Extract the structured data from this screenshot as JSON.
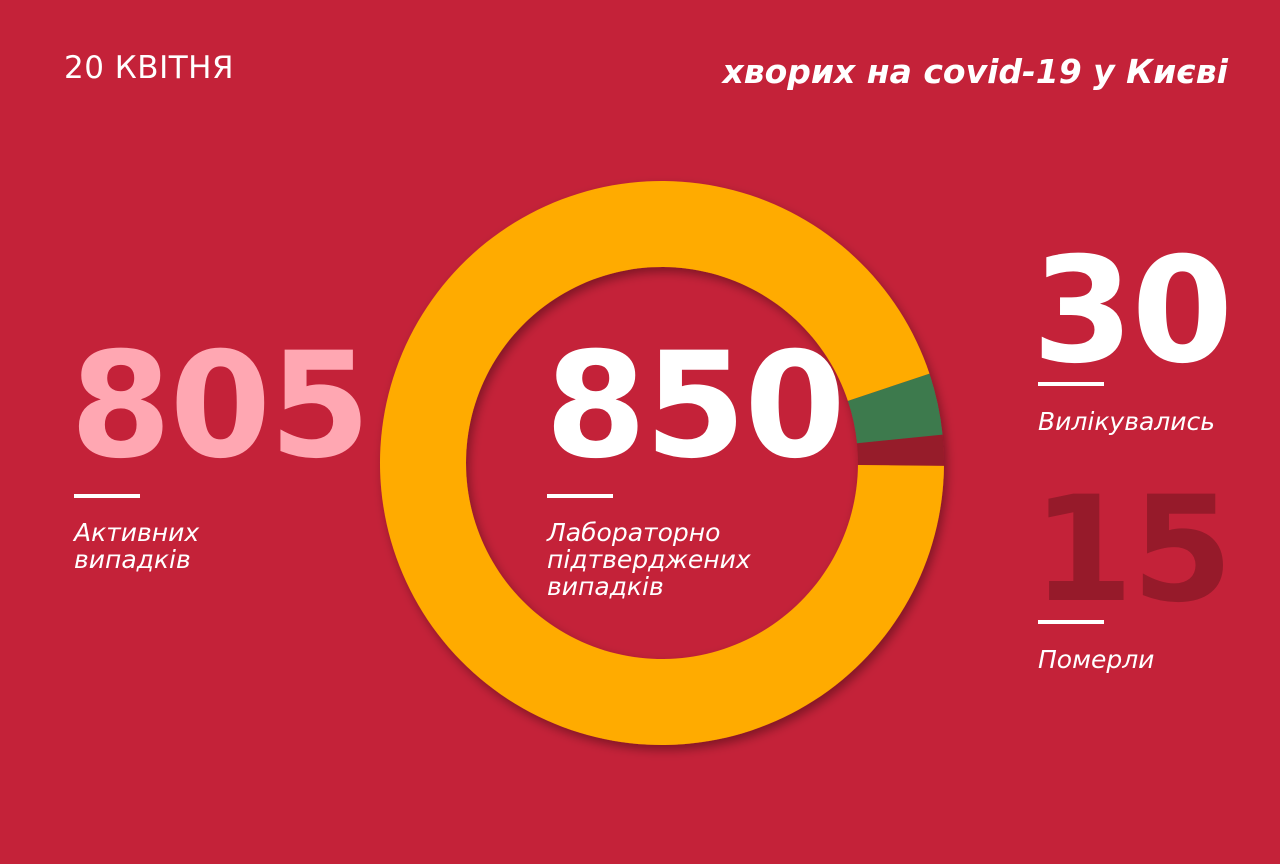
{
  "header": {
    "date": "20 КВІТНЯ",
    "title": "хворих на covid-19 у Києві"
  },
  "stats": {
    "active": {
      "value": "805",
      "label_line1": "Активних",
      "label_line2": "випадків"
    },
    "confirmed": {
      "value": "850",
      "label_line1": "Лабораторно",
      "label_line2": "підтверджених",
      "label_line3": "випадків"
    },
    "recovered": {
      "value": "30",
      "label": "Вилікувались"
    },
    "deaths": {
      "value": "15",
      "label": "Померли"
    }
  },
  "colors": {
    "background": "#c42239",
    "active": "#ffab00",
    "recovered": "#3c7a4d",
    "deaths": "#961a2a",
    "active_number": "#ffa7b2"
  },
  "chart_data": {
    "type": "pie",
    "variant": "donut",
    "total": 850,
    "slices": [
      {
        "name": "Активних випадків",
        "value": 805,
        "color": "#ffab00"
      },
      {
        "name": "Вилікувались",
        "value": 30,
        "color": "#3c7a4d"
      },
      {
        "name": "Померли",
        "value": 15,
        "color": "#961a2a"
      }
    ]
  }
}
